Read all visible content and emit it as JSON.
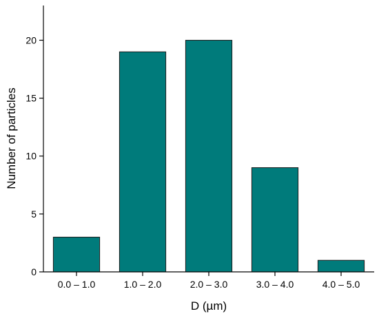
{
  "chart_data": {
    "type": "bar",
    "title": "",
    "xlabel": "D (µm)",
    "ylabel": "Number of particles",
    "categories": [
      "0.0 – 1.0",
      "1.0 – 2.0",
      "2.0 – 3.0",
      "3.0 – 4.0",
      "4.0 – 5.0"
    ],
    "values": [
      3,
      19,
      20,
      9,
      1
    ],
    "ylim": [
      0,
      23
    ],
    "yticks": [
      0,
      5,
      10,
      15,
      20
    ],
    "grid": false,
    "legend": "none",
    "bar_color": "#007b7b",
    "bar_edge_color": "#1a1a1a"
  }
}
